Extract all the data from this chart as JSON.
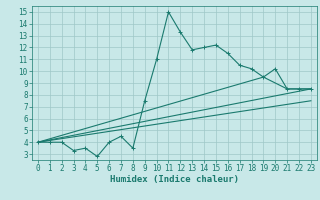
{
  "line1_x": [
    0,
    1,
    2,
    3,
    4,
    5,
    6,
    7,
    8,
    9,
    10,
    11,
    12,
    13,
    14,
    15,
    16,
    17,
    18,
    19,
    20,
    21,
    22,
    23
  ],
  "line1_y": [
    4.0,
    4.0,
    4.0,
    3.3,
    3.5,
    2.8,
    4.0,
    4.5,
    3.5,
    7.5,
    11.0,
    15.0,
    13.3,
    11.8,
    12.0,
    12.2,
    11.5,
    10.5,
    10.2,
    9.5,
    10.2,
    8.5,
    8.5,
    8.5
  ],
  "line2_x": [
    0,
    23
  ],
  "line2_y": [
    4.0,
    8.5
  ],
  "line3_x": [
    0,
    19,
    21,
    23
  ],
  "line3_y": [
    4.0,
    9.5,
    8.5,
    8.5
  ],
  "line4_x": [
    0,
    23
  ],
  "line4_y": [
    4.0,
    7.5
  ],
  "line_color": "#1a7a6e",
  "bg_color": "#c8e8e8",
  "grid_color": "#9fc8c8",
  "xlabel": "Humidex (Indice chaleur)",
  "xlim": [
    -0.5,
    23.5
  ],
  "ylim": [
    2.5,
    15.5
  ],
  "xticks": [
    0,
    1,
    2,
    3,
    4,
    5,
    6,
    7,
    8,
    9,
    10,
    11,
    12,
    13,
    14,
    15,
    16,
    17,
    18,
    19,
    20,
    21,
    22,
    23
  ],
  "yticks": [
    3,
    4,
    5,
    6,
    7,
    8,
    9,
    10,
    11,
    12,
    13,
    14,
    15
  ],
  "tick_fontsize": 5.5,
  "xlabel_fontsize": 6.5
}
